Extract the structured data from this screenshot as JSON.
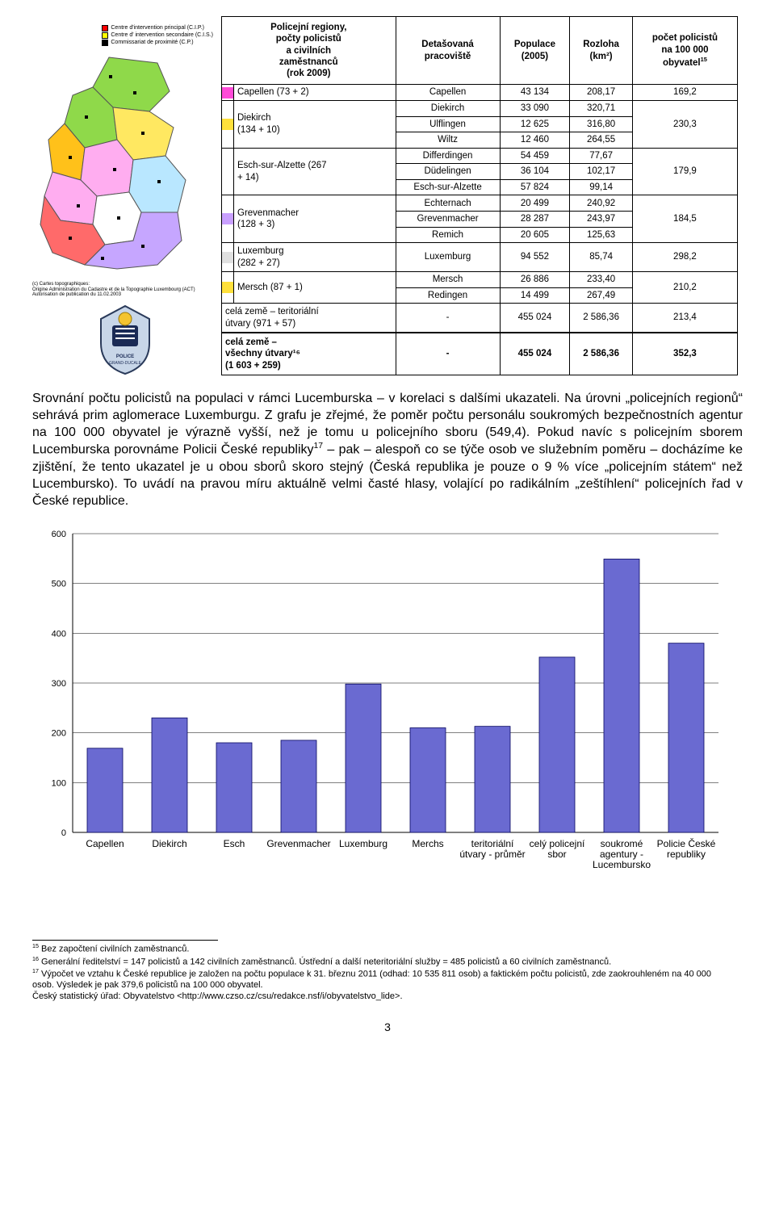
{
  "table": {
    "headers": {
      "region": "Policejní regiony,\npočty policistů\na civilních\nzaměstnanců\n(rok 2009)",
      "detached": "Detašovaná\npracoviště",
      "population": "Populace\n(2005)",
      "area": "Rozloha\n(km²)",
      "per100k": "počet policistů\nna 100 000\nobyvatel¹⁵"
    },
    "groups": [
      {
        "color": "#ff4bd8",
        "region": "Capellen (73 + 2)",
        "rows": [
          {
            "det": "Capellen",
            "pop": "43 134",
            "area": "208,17"
          }
        ],
        "per100k": "169,2"
      },
      {
        "color": "#ffe03b",
        "region": "Diekirch\n(134 + 10)",
        "rows": [
          {
            "det": "Diekirch",
            "pop": "33 090",
            "area": "320,71"
          },
          {
            "det": "Ulflingen",
            "pop": "12 625",
            "area": "316,80"
          },
          {
            "det": "Wiltz",
            "pop": "12 460",
            "area": "264,55"
          }
        ],
        "per100k": "230,3"
      },
      {
        "color": "#ffffff",
        "region": "Esch-sur-Alzette (267\n+ 14)",
        "rows": [
          {
            "det": "Differdingen",
            "pop": "54 459",
            "area": "77,67"
          },
          {
            "det": "Düdelingen",
            "pop": "36 104",
            "area": "102,17"
          },
          {
            "det": "Esch-sur-Alzette",
            "pop": "57 824",
            "area": "99,14"
          }
        ],
        "per100k": "179,9"
      },
      {
        "color": "#c9a0ff",
        "region": "Grevenmacher\n(128 + 3)",
        "rows": [
          {
            "det": "Echternach",
            "pop": "20 499",
            "area": "240,92"
          },
          {
            "det": "Grevenmacher",
            "pop": "28 287",
            "area": "243,97"
          },
          {
            "det": "Remich",
            "pop": "20 605",
            "area": "125,63"
          }
        ],
        "per100k": "184,5"
      },
      {
        "color": "#e0e0e0",
        "region": "Luxemburg\n(282 + 27)",
        "rows": [
          {
            "det": "Luxemburg",
            "pop": "94 552",
            "area": "85,74"
          }
        ],
        "per100k": "298,2"
      },
      {
        "color": "#ffe03b",
        "region": "Mersch (87 + 1)",
        "rows": [
          {
            "det": "Mersch",
            "pop": "26 886",
            "area": "233,40"
          },
          {
            "det": "Redingen",
            "pop": "14 499",
            "area": "267,49"
          }
        ],
        "per100k": "210,2"
      },
      {
        "color": null,
        "region": "celá země – teritoriální\nútvary (971 + 57)",
        "rows": [
          {
            "det": "-",
            "pop": "455 024",
            "area": "2 586,36"
          }
        ],
        "per100k": "213,4"
      },
      {
        "color": null,
        "bold": true,
        "topBorder": true,
        "region": "celá země –\nvšechny útvary¹⁶\n(1 603 + 259)",
        "rows": [
          {
            "det": "-",
            "pop": "455 024",
            "area": "2 586,36"
          }
        ],
        "per100k": "352,3"
      }
    ]
  },
  "paragraph": "Srovnání počtu policistů na populaci v rámci Lucemburska – v korelaci s dalšími ukazateli. Na úrovni „policejních regionů“ sehrává prim aglomerace Luxemburgu. Z grafu je zřejmé, že poměr počtu personálu soukromých bezpečnostních agentur na 100 000 obyvatel je výrazně vyšší, než je tomu u policejního sboru (549,4). Pokud navíc s policejním sborem Lucemburska porovnáme Policii České republiky¹⁷ – pak – alespoň co se týče osob ve služebním poměru – docházíme ke zjištění, že tento ukazatel je u obou sborů skoro stejný (Česká republika je pouze o 9 % více „policejním státem“ než Lucembursko). To uvádí na pravou míru aktuálně velmi časté hlasy, volající po radikálním „zeštíhlení“ policejních řad v České republice.",
  "chart": {
    "type": "bar",
    "ylim": [
      0,
      600
    ],
    "ytick_step": 100,
    "bar_color": "#6a6ad1",
    "bar_border": "#050560",
    "grid_color": "#000000",
    "background_color": "#ffffff",
    "label_fontsize": 12,
    "bar_width": 0.55,
    "categories": [
      "Capellen",
      "Diekirch",
      "Esch",
      "Grevenmacher",
      "Luxemburg",
      "Merchs",
      "teritoriální\nútvary - průměr",
      "celý policejní\nsbor",
      "soukromé\nagentury -\nLucembursko",
      "Policie České\nrepubliky"
    ],
    "values": [
      169,
      230,
      180,
      185,
      298,
      210,
      213,
      352,
      549,
      380
    ]
  },
  "footnotes": {
    "f15": "¹⁵ Bez započtení civilních zaměstnanců.",
    "f16": "¹⁶ Generální ředitelství = 147 policistů a 142 civilních zaměstnanců. Ústřední a další neteritoriální služby = 485 policistů a 60 civilních zaměstnanců.",
    "f17": "¹⁷ Výpočet ve vztahu k České republice je založen na počtu populace k 31. březnu 2011 (odhad: 10 535 811 osob) a faktickém počtu policistů, zde zaokrouhleném na 40 000 osob. Výsledek je pak 379,6 policistů na 100 000 obyvatel.\nČeský statistický úřad: Obyvatelstvo <http://www.czso.cz/csu/redakce.nsf/i/obyvatelstvo_lide>."
  },
  "page_number": "3",
  "map": {
    "legend": [
      {
        "sym": "red",
        "label": "Centre d'intervention principal  (C.I.P.)"
      },
      {
        "sym": "yellow",
        "label": "Centre d' intervention secondaire  (C.I.S.)"
      },
      {
        "sym": "black",
        "label": "Commissariat de proximité (C.P.)"
      }
    ],
    "attribution": "(c) Cartes topographiques:\nOrigine Administration du Cadastre et de la Topographie Luxembourg (ACT)\nAutorisation de publication du 11.02.2003",
    "regions": {
      "north1": "#8fd94a",
      "north2": "#ffe861",
      "west": "#ffc11a",
      "center": "#ffadf0",
      "east": "#b9e7ff",
      "south1": "#ff6a6a",
      "south2": "#c6a6ff",
      "south3": "#ffffff"
    }
  }
}
